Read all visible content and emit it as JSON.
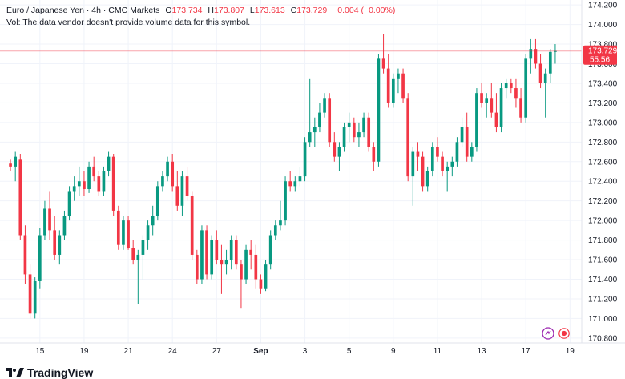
{
  "legend": {
    "title": "Euro / Japanese Yen · 4h · CMC Markets",
    "o_label": "O",
    "o_value": "173.734",
    "h_label": "H",
    "h_value": "173.807",
    "l_label": "L",
    "l_value": "173.613",
    "c_label": "C",
    "c_value": "173.729",
    "change": "−0.004 (−0.00%)",
    "vol_text": "Vol: The data vendor doesn't provide volume data for this symbol."
  },
  "last_price": {
    "price": "173.729",
    "countdown": "55:56",
    "color": "#f23645"
  },
  "colors": {
    "up": "#089981",
    "down": "#f23645",
    "grid": "#f0f3fa",
    "axis_text": "#131722"
  },
  "brand": {
    "name": "TradingView"
  },
  "icons": [
    "tradingview-logo-icon",
    "chart-replay-icon",
    "record-icon"
  ],
  "chart_data": {
    "type": "candlestick",
    "symbol": "Euro / Japanese Yen",
    "interval": "4h",
    "ylim": [
      170.75,
      174.25
    ],
    "y_ticks": [
      "174.200",
      "174.000",
      "173.800",
      "173.600",
      "173.400",
      "173.200",
      "173.000",
      "172.800",
      "172.600",
      "172.400",
      "172.200",
      "172.000",
      "171.800",
      "171.600",
      "171.400",
      "171.200",
      "171.000",
      "170.800"
    ],
    "x_ticks": [
      "15",
      "19",
      "21",
      "24",
      "27",
      "Sep",
      "3",
      "5",
      "9",
      "11",
      "13",
      "17",
      "19"
    ],
    "x_tick_index": [
      6,
      15,
      24,
      33,
      42,
      51,
      60,
      69,
      78,
      87,
      96,
      105,
      114
    ],
    "last_price": 173.729,
    "ohlc": [
      [
        172.58,
        172.62,
        172.5,
        172.55
      ],
      [
        172.55,
        172.7,
        172.4,
        172.65
      ],
      [
        172.62,
        172.68,
        171.8,
        171.85
      ],
      [
        171.85,
        171.95,
        171.35,
        171.45
      ],
      [
        171.45,
        171.55,
        171.0,
        171.05
      ],
      [
        171.05,
        171.42,
        171.0,
        171.38
      ],
      [
        171.38,
        171.92,
        171.3,
        171.85
      ],
      [
        171.85,
        172.2,
        171.8,
        172.12
      ],
      [
        172.12,
        172.3,
        171.8,
        171.9
      ],
      [
        171.9,
        172.05,
        171.6,
        171.65
      ],
      [
        171.65,
        171.9,
        171.55,
        171.85
      ],
      [
        171.85,
        172.1,
        171.8,
        172.05
      ],
      [
        172.05,
        172.35,
        172.0,
        172.3
      ],
      [
        172.3,
        172.45,
        172.2,
        172.35
      ],
      [
        172.35,
        172.55,
        172.25,
        172.4
      ],
      [
        172.4,
        172.5,
        172.25,
        172.32
      ],
      [
        172.32,
        172.6,
        172.28,
        172.55
      ],
      [
        172.55,
        172.65,
        172.4,
        172.45
      ],
      [
        172.45,
        172.5,
        172.25,
        172.3
      ],
      [
        172.3,
        172.55,
        172.25,
        172.5
      ],
      [
        172.5,
        172.7,
        172.45,
        172.65
      ],
      [
        172.65,
        172.68,
        172.05,
        172.1
      ],
      [
        172.1,
        172.15,
        171.7,
        171.75
      ],
      [
        171.75,
        172.05,
        171.7,
        172.0
      ],
      [
        172.0,
        172.05,
        171.7,
        171.72
      ],
      [
        171.72,
        171.8,
        171.55,
        171.6
      ],
      [
        171.6,
        171.7,
        171.15,
        171.65
      ],
      [
        171.65,
        171.85,
        171.4,
        171.8
      ],
      [
        171.8,
        172.0,
        171.7,
        171.95
      ],
      [
        171.95,
        172.15,
        171.85,
        172.05
      ],
      [
        172.05,
        172.4,
        172.0,
        172.35
      ],
      [
        172.35,
        172.5,
        172.3,
        172.45
      ],
      [
        172.45,
        172.65,
        172.4,
        172.6
      ],
      [
        172.6,
        172.68,
        172.3,
        172.35
      ],
      [
        172.35,
        172.5,
        172.1,
        172.15
      ],
      [
        172.15,
        172.5,
        172.05,
        172.45
      ],
      [
        172.45,
        172.55,
        172.2,
        172.25
      ],
      [
        172.25,
        172.3,
        171.6,
        171.65
      ],
      [
        171.65,
        171.7,
        171.35,
        171.4
      ],
      [
        171.4,
        171.95,
        171.35,
        171.9
      ],
      [
        171.9,
        171.95,
        171.4,
        171.45
      ],
      [
        171.45,
        171.85,
        171.4,
        171.8
      ],
      [
        171.8,
        171.9,
        171.55,
        171.6
      ],
      [
        171.6,
        171.75,
        171.25,
        171.55
      ],
      [
        171.55,
        171.7,
        171.45,
        171.6
      ],
      [
        171.6,
        171.85,
        171.5,
        171.8
      ],
      [
        171.8,
        171.85,
        171.5,
        171.55
      ],
      [
        171.55,
        171.6,
        171.1,
        171.4
      ],
      [
        171.4,
        171.75,
        171.35,
        171.7
      ],
      [
        171.7,
        171.8,
        171.5,
        171.65
      ],
      [
        171.65,
        171.75,
        171.3,
        171.4
      ],
      [
        171.4,
        171.45,
        171.25,
        171.3
      ],
      [
        171.3,
        171.6,
        171.28,
        171.55
      ],
      [
        171.55,
        171.9,
        171.5,
        171.85
      ],
      [
        171.85,
        172.0,
        171.8,
        171.95
      ],
      [
        171.95,
        172.2,
        171.9,
        172.0
      ],
      [
        172.0,
        172.45,
        171.95,
        172.4
      ],
      [
        172.4,
        172.5,
        172.3,
        172.35
      ],
      [
        172.35,
        172.45,
        172.3,
        172.4
      ],
      [
        172.4,
        172.55,
        172.35,
        172.45
      ],
      [
        172.45,
        172.85,
        172.4,
        172.8
      ],
      [
        172.8,
        173.45,
        172.75,
        172.9
      ],
      [
        172.9,
        173.05,
        172.75,
        172.95
      ],
      [
        172.95,
        173.2,
        172.9,
        173.1
      ],
      [
        173.1,
        173.3,
        173.05,
        173.25
      ],
      [
        173.25,
        173.3,
        172.75,
        172.8
      ],
      [
        172.8,
        172.9,
        172.6,
        172.65
      ],
      [
        172.65,
        172.8,
        172.5,
        172.75
      ],
      [
        172.75,
        173.0,
        172.7,
        172.95
      ],
      [
        172.95,
        173.1,
        172.8,
        173.0
      ],
      [
        173.0,
        173.05,
        172.8,
        172.85
      ],
      [
        172.85,
        173.0,
        172.75,
        172.9
      ],
      [
        172.9,
        173.1,
        172.85,
        173.05
      ],
      [
        173.05,
        173.1,
        172.7,
        172.75
      ],
      [
        172.75,
        172.8,
        172.5,
        172.6
      ],
      [
        172.6,
        173.7,
        172.55,
        173.65
      ],
      [
        173.65,
        173.9,
        173.5,
        173.55
      ],
      [
        173.55,
        173.7,
        173.15,
        173.2
      ],
      [
        173.2,
        173.5,
        173.15,
        173.45
      ],
      [
        173.45,
        173.55,
        173.3,
        173.5
      ],
      [
        173.5,
        173.55,
        173.2,
        173.25
      ],
      [
        173.25,
        173.3,
        172.4,
        172.45
      ],
      [
        172.45,
        172.75,
        172.15,
        172.7
      ],
      [
        172.7,
        172.8,
        172.5,
        172.65
      ],
      [
        172.65,
        172.7,
        172.3,
        172.35
      ],
      [
        172.35,
        172.55,
        172.3,
        172.5
      ],
      [
        172.5,
        172.8,
        172.45,
        172.75
      ],
      [
        172.75,
        172.85,
        172.6,
        172.65
      ],
      [
        172.65,
        172.7,
        172.45,
        172.5
      ],
      [
        172.5,
        172.6,
        172.3,
        172.55
      ],
      [
        172.55,
        172.65,
        172.45,
        172.6
      ],
      [
        172.6,
        172.85,
        172.55,
        172.8
      ],
      [
        172.8,
        173.05,
        172.75,
        172.95
      ],
      [
        172.95,
        173.1,
        172.6,
        172.65
      ],
      [
        172.65,
        172.8,
        172.6,
        172.75
      ],
      [
        172.75,
        173.35,
        172.7,
        173.3
      ],
      [
        173.3,
        173.4,
        173.15,
        173.2
      ],
      [
        173.2,
        173.3,
        173.05,
        173.25
      ],
      [
        173.25,
        173.4,
        173.05,
        173.1
      ],
      [
        173.1,
        173.3,
        172.9,
        172.95
      ],
      [
        172.95,
        173.4,
        172.9,
        173.35
      ],
      [
        173.35,
        173.45,
        173.25,
        173.4
      ],
      [
        173.4,
        173.45,
        173.3,
        173.35
      ],
      [
        173.35,
        173.45,
        173.15,
        173.25
      ],
      [
        173.25,
        173.35,
        173.0,
        173.05
      ],
      [
        173.05,
        173.7,
        173.0,
        173.65
      ],
      [
        173.65,
        173.85,
        173.5,
        173.75
      ],
      [
        173.75,
        173.85,
        173.55,
        173.6
      ],
      [
        173.6,
        173.7,
        173.35,
        173.4
      ],
      [
        173.4,
        173.55,
        173.05,
        173.5
      ],
      [
        173.5,
        173.75,
        173.4,
        173.72
      ],
      [
        173.72,
        173.8,
        173.6,
        173.73
      ]
    ]
  }
}
